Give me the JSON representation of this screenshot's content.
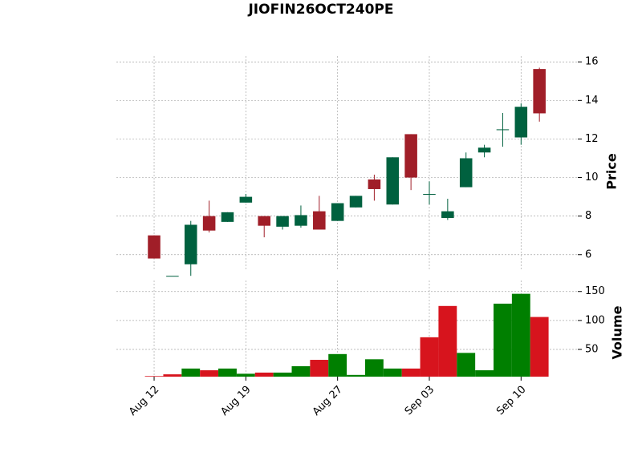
{
  "chart_data": {
    "type": "candlestick",
    "title": "JIOFIN26OCT240PE",
    "x": [
      "Aug 12",
      null,
      null,
      null,
      null,
      "Aug 19",
      null,
      null,
      null,
      null,
      "Aug 27",
      null,
      null,
      null,
      null,
      "Sep 03",
      null,
      null,
      null,
      null,
      "Sep 10",
      null
    ],
    "open": [
      7.0,
      4.9,
      5.5,
      8.0,
      7.7,
      8.7,
      8.0,
      7.45,
      7.5,
      8.25,
      7.75,
      8.45,
      9.9,
      8.6,
      12.25,
      9.15,
      7.9,
      9.5,
      11.3,
      12.5,
      12.08,
      15.63
    ],
    "high": [
      7.0,
      4.9,
      7.75,
      8.8,
      8.2,
      9.15,
      8.0,
      8.0,
      8.55,
      9.05,
      8.67,
      9.05,
      10.15,
      11.05,
      12.25,
      9.8,
      8.9,
      11.3,
      11.7,
      13.35,
      13.85,
      15.7
    ],
    "low": [
      5.8,
      4.9,
      4.9,
      7.15,
      7.7,
      8.7,
      6.9,
      7.3,
      7.4,
      7.3,
      7.75,
      8.45,
      8.8,
      8.6,
      9.35,
      8.6,
      7.8,
      9.5,
      11.05,
      11.6,
      11.7,
      12.9
    ],
    "close": [
      5.8,
      4.9,
      7.55,
      7.25,
      8.2,
      9.0,
      7.5,
      8.0,
      8.05,
      7.3,
      8.67,
      9.05,
      9.4,
      11.05,
      10.0,
      9.15,
      8.25,
      11.0,
      11.55,
      12.5,
      13.67,
      13.33
    ],
    "up_color": "#00613f",
    "down_color": "#a01e28",
    "ylabel": "Price",
    "ylim": [
      5.2,
      16.3
    ],
    "yticks": [
      6,
      8,
      10,
      12,
      14,
      16
    ],
    "grid": true,
    "volume": {
      "ylabel": "Volume",
      "values": [
        4,
        7,
        17,
        14,
        17,
        8,
        10,
        10,
        21,
        32,
        42,
        6,
        33,
        17,
        17,
        71,
        125,
        44,
        14,
        129,
        146,
        106
      ],
      "up_color": "#007f00",
      "down_color": "#d7141d",
      "ylim": [
        3,
        169
      ],
      "yticks": [
        50,
        100,
        150
      ]
    }
  }
}
